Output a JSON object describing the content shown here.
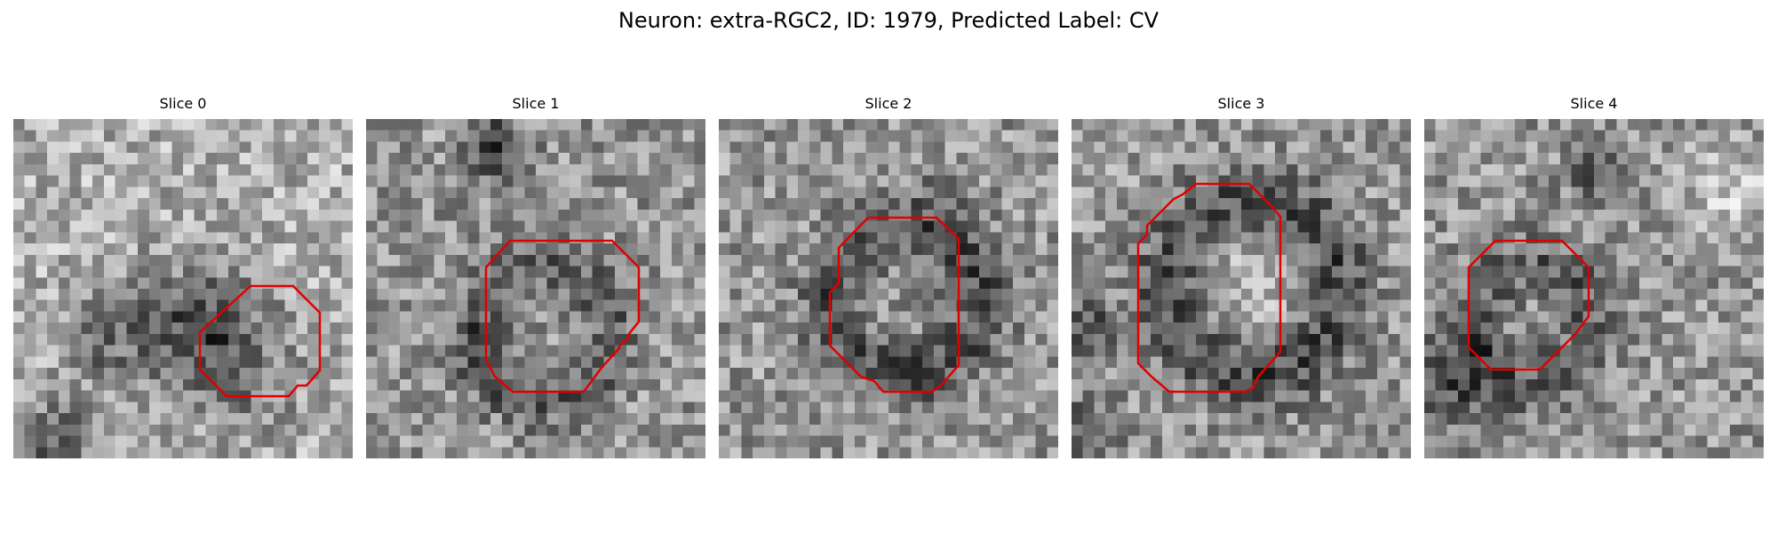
{
  "figure": {
    "title": "Neuron: extra-RGC2, ID: 1979, Predicted Label: CV"
  },
  "contour_color": "#e00000",
  "slices": [
    {
      "label": "Slice 0"
    },
    {
      "label": "Slice 1"
    },
    {
      "label": "Slice 2"
    },
    {
      "label": "Slice 3"
    },
    {
      "label": "Slice 4"
    }
  ]
}
